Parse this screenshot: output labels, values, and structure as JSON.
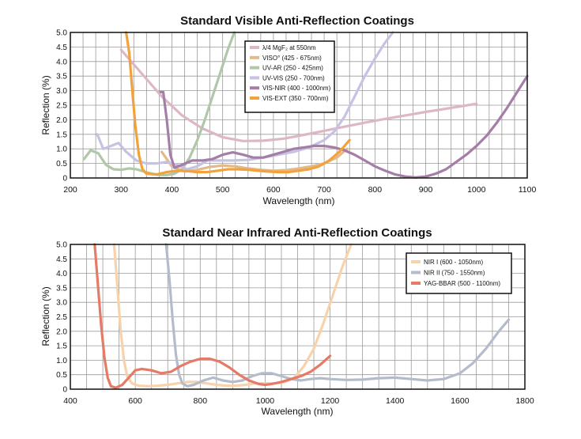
{
  "chart_data": [
    {
      "type": "line",
      "title": "Standard Visible Anti-Reflection Coatings",
      "xlabel": "Wavelength (nm)",
      "ylabel": "Reflection (%)",
      "xlim": [
        200,
        1100
      ],
      "ylim": [
        0,
        5
      ],
      "xticks": [
        200,
        300,
        400,
        500,
        600,
        700,
        800,
        900,
        1000,
        1100
      ],
      "xtick_labels": [
        "200",
        "300",
        "400",
        "500",
        "600",
        "700",
        "800",
        "900",
        "1000",
        "1100"
      ],
      "yticks": [
        0,
        0.5,
        1,
        1.5,
        2,
        2.5,
        3,
        3.5,
        4,
        4.5,
        5
      ],
      "ytick_labels": [
        "0",
        "0.5",
        "1.0",
        "1.5",
        "2.0",
        "2.5",
        "3.0",
        "3.5",
        "4.0",
        "4.5",
        "5.0"
      ],
      "grid": true,
      "legend_position": "top-center",
      "series": [
        {
          "name": "λ/4 MgF₂ at 550nm",
          "color": "#ddb8c4",
          "x": [
            300,
            340,
            380,
            420,
            460,
            500,
            540,
            580,
            620,
            660,
            700,
            740,
            780,
            820,
            860,
            900,
            940,
            1000
          ],
          "y": [
            4.4,
            3.6,
            2.8,
            2.15,
            1.7,
            1.4,
            1.27,
            1.28,
            1.35,
            1.48,
            1.62,
            1.76,
            1.9,
            2.03,
            2.15,
            2.27,
            2.38,
            2.55
          ]
        },
        {
          "name": "VISO° (425 - 675nm)",
          "color": "#e4b98a",
          "x": [
            380,
            400,
            425,
            450,
            475,
            500,
            525,
            550,
            575,
            600,
            625,
            650,
            675,
            700,
            725,
            745
          ],
          "y": [
            0.9,
            0.4,
            0.22,
            0.28,
            0.38,
            0.43,
            0.4,
            0.33,
            0.28,
            0.25,
            0.27,
            0.33,
            0.4,
            0.5,
            0.7,
            1.0
          ]
        },
        {
          "name": "UV-AR (250 - 425nm)",
          "color": "#b0c8a8",
          "x": [
            227,
            240,
            255,
            270,
            285,
            300,
            315,
            330,
            345,
            360,
            375,
            390,
            405,
            420,
            435,
            450,
            465,
            480,
            495,
            510,
            523
          ],
          "y": [
            0.65,
            0.95,
            0.85,
            0.45,
            0.3,
            0.28,
            0.33,
            0.3,
            0.22,
            0.15,
            0.1,
            0.1,
            0.15,
            0.3,
            0.7,
            1.3,
            2.0,
            2.8,
            3.6,
            4.4,
            5.0
          ]
        },
        {
          "name": "UV-VIS (250 - 700nm)",
          "color": "#c6c2e4",
          "x": [
            253,
            265,
            280,
            295,
            310,
            330,
            350,
            370,
            390,
            410,
            430,
            450,
            470,
            490,
            520,
            550,
            580,
            610,
            640,
            670,
            700,
            720,
            740,
            760,
            780,
            800,
            818,
            835
          ],
          "y": [
            1.5,
            1.0,
            1.1,
            1.2,
            0.9,
            0.6,
            0.5,
            0.5,
            0.55,
            0.45,
            0.3,
            0.4,
            0.6,
            0.6,
            0.6,
            0.62,
            0.7,
            0.8,
            0.9,
            1.05,
            1.3,
            1.6,
            2.1,
            2.8,
            3.5,
            4.1,
            4.6,
            5.0
          ]
        },
        {
          "name": "VIS-NIR (400 - 1000nm)",
          "color": "#a57ea8",
          "x": [
            378,
            383,
            390,
            397,
            405,
            420,
            440,
            460,
            480,
            500,
            520,
            540,
            560,
            580,
            600,
            620,
            640,
            660,
            680,
            700,
            720,
            740,
            760,
            780,
            800,
            820,
            840,
            860,
            880,
            900,
            920,
            940,
            960,
            980,
            1000,
            1020,
            1040,
            1060,
            1080,
            1100
          ],
          "y": [
            2.95,
            2.95,
            2.0,
            0.8,
            0.35,
            0.45,
            0.6,
            0.6,
            0.65,
            0.8,
            0.88,
            0.8,
            0.7,
            0.7,
            0.8,
            0.9,
            1.0,
            1.05,
            1.1,
            1.1,
            1.05,
            0.95,
            0.8,
            0.6,
            0.4,
            0.25,
            0.12,
            0.05,
            0.02,
            0.05,
            0.15,
            0.3,
            0.55,
            0.8,
            1.1,
            1.45,
            1.9,
            2.4,
            2.95,
            3.5
          ]
        },
        {
          "name": "VIS-EXT (350 - 700nm)",
          "color": "#f2a23c",
          "x": [
            310,
            316,
            322,
            328,
            335,
            342,
            350,
            370,
            390,
            410,
            430,
            450,
            470,
            490,
            510,
            530,
            550,
            570,
            590,
            610,
            630,
            650,
            670,
            690,
            710,
            730,
            750
          ],
          "y": [
            5.0,
            4.3,
            3.0,
            1.8,
            0.8,
            0.3,
            0.15,
            0.12,
            0.2,
            0.25,
            0.24,
            0.2,
            0.2,
            0.25,
            0.3,
            0.3,
            0.28,
            0.25,
            0.22,
            0.2,
            0.2,
            0.25,
            0.3,
            0.4,
            0.6,
            0.9,
            1.3
          ]
        }
      ]
    },
    {
      "type": "line",
      "title": "Standard Near Infrared Anti-Reflection Coatings",
      "xlabel": "Wavelength (nm)",
      "ylabel": "Reflection (%)",
      "xlim": [
        400,
        1800
      ],
      "ylim": [
        0,
        5
      ],
      "xticks": [
        400,
        600,
        800,
        1000,
        1200,
        1400,
        1600,
        1800
      ],
      "xtick_labels": [
        "400",
        "600",
        "800",
        "1000",
        "1200",
        "1400",
        "1600",
        "1800"
      ],
      "yticks": [
        0,
        0.5,
        1,
        1.5,
        2,
        2.5,
        3,
        3.5,
        4,
        4.5,
        5
      ],
      "ytick_labels": [
        "0",
        "0.5",
        "1.0",
        "1.5",
        "2.0",
        "2.5",
        "3.0",
        "3.5",
        "4.0",
        "4.5",
        "5.0"
      ],
      "grid": true,
      "legend_position": "top-right",
      "series": [
        {
          "name": "NIR I (600 - 1050nm)",
          "color": "#f8d2aa",
          "x": [
            535,
            545,
            555,
            565,
            575,
            590,
            610,
            640,
            670,
            700,
            730,
            760,
            790,
            820,
            850,
            880,
            910,
            940,
            970,
            1000,
            1030,
            1060,
            1090,
            1120,
            1150,
            1180,
            1210,
            1240,
            1265
          ],
          "y": [
            5.0,
            3.5,
            2.0,
            1.0,
            0.45,
            0.2,
            0.12,
            0.1,
            0.12,
            0.15,
            0.2,
            0.25,
            0.25,
            0.2,
            0.15,
            0.12,
            0.12,
            0.15,
            0.2,
            0.2,
            0.2,
            0.25,
            0.4,
            0.8,
            1.4,
            2.3,
            3.3,
            4.3,
            5.0
          ]
        },
        {
          "name": "NIR II (750 - 1550nm)",
          "color": "#b4bccc",
          "x": [
            695,
            705,
            715,
            725,
            735,
            745,
            760,
            780,
            810,
            840,
            870,
            900,
            930,
            960,
            990,
            1020,
            1050,
            1080,
            1110,
            1140,
            1170,
            1200,
            1250,
            1300,
            1350,
            1400,
            1450,
            1500,
            1550,
            1600,
            1640,
            1680,
            1720,
            1750
          ],
          "y": [
            5.0,
            3.8,
            2.4,
            1.2,
            0.5,
            0.2,
            0.1,
            0.15,
            0.3,
            0.4,
            0.3,
            0.25,
            0.3,
            0.45,
            0.55,
            0.55,
            0.45,
            0.35,
            0.3,
            0.35,
            0.38,
            0.35,
            0.32,
            0.33,
            0.38,
            0.4,
            0.35,
            0.3,
            0.35,
            0.55,
            0.9,
            1.4,
            2.0,
            2.4
          ]
        },
        {
          "name": "YAG-BBAR (500 - 1100nm)",
          "color": "#e57a67",
          "x": [
            475,
            485,
            495,
            505,
            515,
            525,
            540,
            560,
            580,
            600,
            620,
            650,
            680,
            710,
            740,
            770,
            800,
            830,
            860,
            890,
            920,
            950,
            980,
            1000,
            1020,
            1050,
            1080,
            1110,
            1140,
            1170,
            1200
          ],
          "y": [
            5.0,
            3.6,
            2.2,
            1.1,
            0.4,
            0.1,
            0.05,
            0.15,
            0.4,
            0.65,
            0.7,
            0.65,
            0.55,
            0.6,
            0.8,
            0.95,
            1.05,
            1.05,
            0.95,
            0.75,
            0.5,
            0.3,
            0.18,
            0.15,
            0.18,
            0.25,
            0.35,
            0.45,
            0.6,
            0.85,
            1.15
          ]
        }
      ]
    }
  ]
}
